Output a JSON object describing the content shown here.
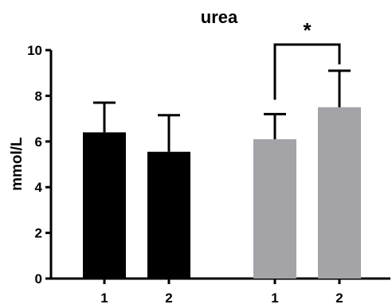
{
  "chart_data": {
    "type": "bar",
    "title": "urea",
    "ylabel": "mmol/L",
    "xlabel": "",
    "ylim": [
      0,
      10
    ],
    "y_ticks": [
      "0",
      "2",
      "4",
      "6",
      "8",
      "10"
    ],
    "categories": [
      "1",
      "2",
      "1",
      "2"
    ],
    "values": [
      6.4,
      5.55,
      6.1,
      7.5
    ],
    "errors": [
      1.3,
      1.6,
      1.1,
      1.6
    ],
    "bar_colors": [
      "#000000",
      "#000000",
      "#a3a3a8",
      "#a3a3a8"
    ],
    "significance": {
      "between": [
        2,
        3
      ],
      "label": "*"
    },
    "grid": false
  }
}
